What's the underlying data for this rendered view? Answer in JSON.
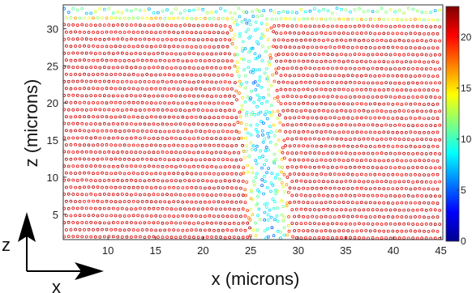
{
  "chart_data": {
    "type": "scatter",
    "xlabel": "x (microns)",
    "ylabel": "z (microns)",
    "xlim": [
      5.3,
      45.2
    ],
    "ylim": [
      1.6,
      33.2
    ],
    "xticks": [
      "10",
      "15",
      "20",
      "25",
      "30",
      "35",
      "40",
      "45"
    ],
    "yticks": [
      "5",
      "10",
      "15",
      "20",
      "25",
      "30"
    ],
    "colorbar": {
      "range": [
        0,
        23
      ],
      "ticks": [
        "0",
        "5",
        "10",
        "15",
        "20"
      ],
      "colormap": "jet"
    },
    "layers": {
      "count": 33,
      "z_start": 2,
      "z_step": 0.95,
      "point_spacing_x": 0.47
    },
    "disorder_band": {
      "description_free": true,
      "x_center_bottom": 27.2,
      "x_center_top": 24.8,
      "width": 2.3,
      "min_value": 7,
      "max_value": 21
    },
    "top_surface_value": 10,
    "bulk_value": 21
  },
  "indicator": {
    "vertical_label": "z",
    "horizontal_label": "x"
  }
}
